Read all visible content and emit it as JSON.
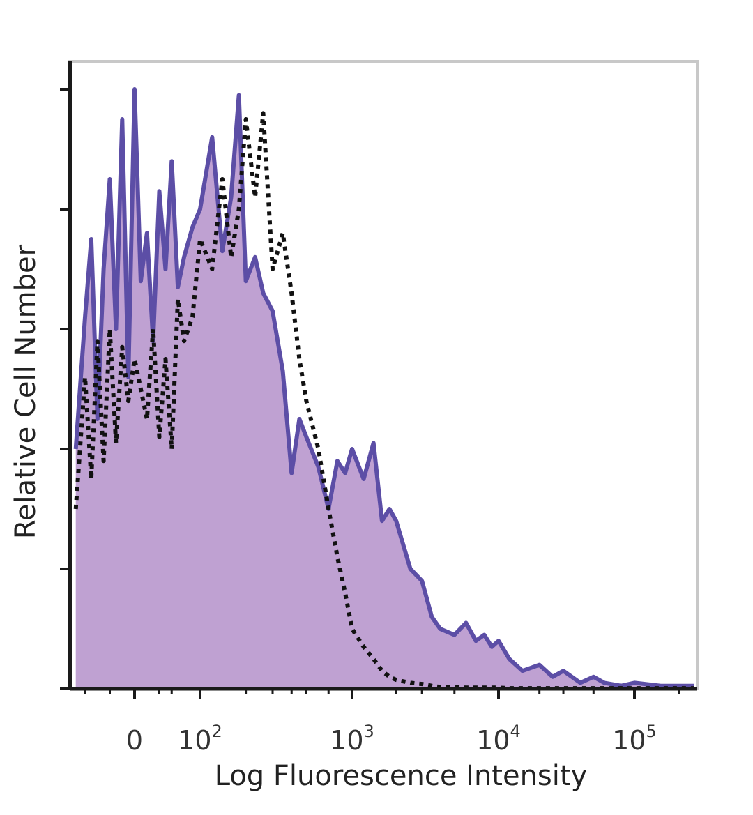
{
  "chart_data": {
    "type": "area",
    "title": "",
    "xlabel": "Log Fluorescence Intensity",
    "ylabel": "Relative Cell Number",
    "x_scale": "biexponential",
    "xlim": [
      -100,
      250000
    ],
    "ylim": [
      0,
      100
    ],
    "grid": false,
    "legend": "none",
    "x_ticks": [
      {
        "value": 0,
        "base": "0",
        "exp": ""
      },
      {
        "value": 100,
        "base": "10",
        "exp": "2"
      },
      {
        "value": 1000,
        "base": "10",
        "exp": "3"
      },
      {
        "value": 10000,
        "base": "10",
        "exp": "4"
      },
      {
        "value": 100000,
        "base": "10",
        "exp": "5"
      }
    ],
    "series": [
      {
        "style": "filled-solid",
        "fill_color": "#bfa1d2",
        "line_color": "#5c4ea6",
        "x": [
          -95,
          -80,
          -70,
          -60,
          -50,
          -40,
          -30,
          -20,
          -10,
          0,
          10,
          20,
          30,
          40,
          50,
          60,
          70,
          80,
          90,
          100,
          120,
          140,
          160,
          180,
          200,
          230,
          260,
          300,
          350,
          400,
          450,
          500,
          600,
          700,
          800,
          900,
          1000,
          1200,
          1400,
          1600,
          1800,
          2000,
          2500,
          3000,
          3500,
          4000,
          5000,
          6000,
          7000,
          8000,
          9000,
          10000,
          12000,
          15000,
          20000,
          25000,
          30000,
          40000,
          50000,
          60000,
          80000,
          100000,
          150000,
          200000,
          250000
        ],
        "y": [
          40,
          62,
          75,
          45,
          70,
          85,
          60,
          95,
          52,
          100,
          68,
          76,
          58,
          83,
          70,
          88,
          67,
          72,
          77,
          80,
          92,
          73,
          82,
          99,
          68,
          72,
          66,
          63,
          53,
          36,
          45,
          42,
          37,
          30,
          38,
          36,
          40,
          35,
          41,
          28,
          30,
          28,
          20,
          18,
          12,
          10,
          9,
          11,
          8,
          9,
          7,
          8,
          5,
          3,
          4,
          2,
          3,
          1,
          2,
          1,
          0.5,
          1,
          0.5,
          0.5,
          0.5
        ]
      },
      {
        "style": "dotted",
        "line_color": "#111111",
        "x": [
          -95,
          -80,
          -70,
          -60,
          -50,
          -40,
          -30,
          -20,
          -10,
          0,
          10,
          20,
          30,
          40,
          50,
          60,
          70,
          80,
          90,
          100,
          120,
          140,
          160,
          180,
          200,
          230,
          260,
          300,
          350,
          400,
          450,
          500,
          600,
          700,
          800,
          900,
          1000,
          1200,
          1400,
          1600,
          1800,
          2000,
          2500,
          3000,
          3500,
          4000,
          5000,
          6000,
          7000,
          8000,
          9000,
          10000,
          12000,
          15000,
          20000,
          25000,
          30000,
          40000,
          50000,
          60000,
          80000,
          100000,
          150000,
          200000,
          250000
        ],
        "y": [
          30,
          52,
          35,
          58,
          38,
          60,
          41,
          57,
          48,
          55,
          50,
          45,
          60,
          42,
          55,
          40,
          65,
          58,
          62,
          75,
          70,
          85,
          72,
          80,
          95,
          82,
          96,
          70,
          76,
          66,
          55,
          48,
          40,
          30,
          22,
          16,
          10,
          7,
          5,
          3,
          2,
          1.5,
          1,
          0.8,
          0.5,
          0.3,
          0.3,
          0.2,
          0.2,
          0.2,
          0.2,
          0.2,
          0.1,
          0.1,
          0.1,
          0.1,
          0.1,
          0.1,
          0.1,
          0.1,
          0.1,
          0.1,
          0.1,
          0.1,
          0.1
        ]
      }
    ]
  }
}
